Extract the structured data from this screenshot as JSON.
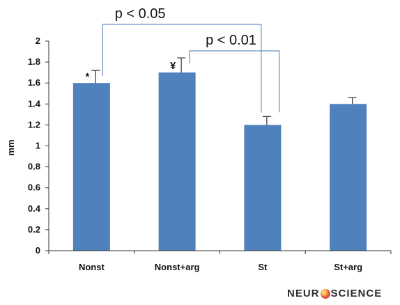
{
  "chart_data": {
    "type": "bar",
    "categories": [
      "Nonst",
      "Nonst+arg",
      "St",
      "St+arg"
    ],
    "values": [
      1.6,
      1.7,
      1.2,
      1.4
    ],
    "error": [
      0.12,
      0.14,
      0.08,
      0.06
    ],
    "ylabel": "mm",
    "ylim": [
      0,
      2
    ],
    "yticks": [
      "0",
      "0.2",
      "0.4",
      "0.6",
      "0.8",
      "1",
      "1.2",
      "1.4",
      "1.6",
      "1.8",
      "2"
    ],
    "bar_color": "#4f81bd",
    "markers": [
      "*",
      "¥",
      "",
      ""
    ],
    "comparisons": [
      {
        "from": 0,
        "to": 2,
        "label": "p < 0.05"
      },
      {
        "from": 1,
        "to": 2,
        "label": "p < 0.01"
      }
    ],
    "grid": false,
    "legend": "none"
  },
  "logo": {
    "left": "NEUR",
    "right": "SCIENCE"
  }
}
